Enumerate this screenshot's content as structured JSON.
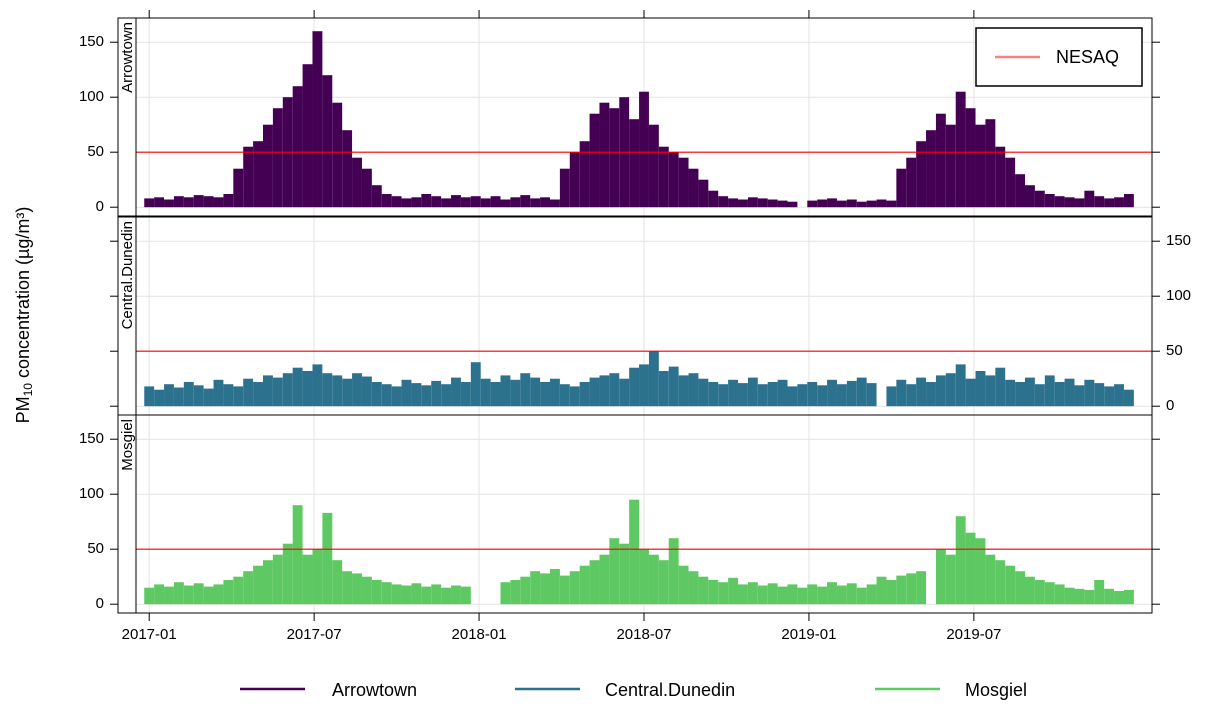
{
  "chart_data": {
    "type": "bar",
    "ylabel_parts": [
      "PM",
      "10",
      " concentration (µg/m³)"
    ],
    "x": [
      2017,
      2017.03,
      2017.06,
      2017.09,
      2017.12,
      2017.15,
      2017.18,
      2017.21,
      2017.24,
      2017.27,
      2017.3,
      2017.33,
      2017.36,
      2017.39,
      2017.42,
      2017.45,
      2017.48,
      2017.51,
      2017.54,
      2017.57,
      2017.6,
      2017.63,
      2017.66,
      2017.69,
      2017.72,
      2017.75,
      2017.78,
      2017.81,
      2017.84,
      2017.87,
      2017.9,
      2017.93,
      2017.96,
      2017.99,
      2018.02,
      2018.05,
      2018.08,
      2018.11,
      2018.14,
      2018.17,
      2018.2,
      2018.23,
      2018.26,
      2018.29,
      2018.32,
      2018.35,
      2018.38,
      2018.41,
      2018.44,
      2018.47,
      2018.5,
      2018.53,
      2018.56,
      2018.59,
      2018.62,
      2018.65,
      2018.68,
      2018.71,
      2018.74,
      2018.77,
      2018.8,
      2018.83,
      2018.86,
      2018.89,
      2018.92,
      2018.95,
      2018.98,
      2019.01,
      2019.04,
      2019.07,
      2019.1,
      2019.13,
      2019.16,
      2019.19,
      2019.22,
      2019.25,
      2019.28,
      2019.31,
      2019.34,
      2019.37,
      2019.4,
      2019.43,
      2019.46,
      2019.49,
      2019.52,
      2019.55,
      2019.58,
      2019.61,
      2019.64,
      2019.67,
      2019.7,
      2019.73,
      2019.76,
      2019.79,
      2019.82,
      2019.85,
      2019.88,
      2019.91,
      2019.94,
      2019.97
    ],
    "xlim": [
      2016.96,
      2020.04
    ],
    "xticks": [
      {
        "value": 2017,
        "label": "2017-01"
      },
      {
        "value": 2017.5,
        "label": "2017-07"
      },
      {
        "value": 2018,
        "label": "2018-01"
      },
      {
        "value": 2018.5,
        "label": "2018-07"
      },
      {
        "value": 2019,
        "label": "2019-01"
      },
      {
        "value": 2019.5,
        "label": "2019-07"
      }
    ],
    "ylim": [
      -8,
      172
    ],
    "yticks": [
      0,
      50,
      100,
      150
    ],
    "grid": true,
    "reference": {
      "name": "NESAQ",
      "value": 50,
      "color": "#ff0000"
    },
    "series": [
      {
        "name": "Arrowtown",
        "color": "#440154",
        "values": [
          8,
          9,
          7,
          10,
          9,
          11,
          10,
          9,
          12,
          35,
          55,
          60,
          75,
          90,
          100,
          110,
          130,
          160,
          120,
          95,
          70,
          45,
          35,
          20,
          12,
          10,
          8,
          9,
          12,
          10,
          8,
          11,
          9,
          10,
          8,
          10,
          7,
          9,
          11,
          8,
          9,
          7,
          35,
          50,
          60,
          85,
          95,
          90,
          100,
          80,
          105,
          75,
          55,
          50,
          45,
          35,
          25,
          15,
          10,
          8,
          7,
          9,
          8,
          7,
          6,
          5,
          null,
          6,
          7,
          8,
          6,
          7,
          5,
          6,
          7,
          6,
          35,
          45,
          60,
          70,
          85,
          75,
          105,
          90,
          75,
          80,
          55,
          45,
          30,
          20,
          15,
          12,
          10,
          9,
          8,
          15,
          10,
          8,
          9,
          12
        ]
      },
      {
        "name": "Central.Dunedin",
        "color": "#2c728e",
        "values": [
          18,
          15,
          20,
          17,
          22,
          19,
          16,
          24,
          20,
          18,
          25,
          22,
          28,
          26,
          30,
          35,
          32,
          38,
          30,
          28,
          25,
          30,
          27,
          22,
          20,
          18,
          24,
          21,
          19,
          23,
          20,
          26,
          22,
          40,
          25,
          22,
          28,
          24,
          30,
          26,
          22,
          25,
          20,
          18,
          22,
          26,
          28,
          30,
          25,
          35,
          38,
          50,
          32,
          36,
          28,
          30,
          25,
          22,
          20,
          24,
          21,
          26,
          20,
          22,
          24,
          18,
          20,
          22,
          19,
          24,
          20,
          23,
          26,
          21,
          null,
          18,
          24,
          20,
          26,
          22,
          28,
          30,
          38,
          25,
          32,
          28,
          35,
          24,
          22,
          26,
          20,
          28,
          22,
          25,
          19,
          24,
          21,
          18,
          20,
          15
        ]
      },
      {
        "name": "Mosgiel",
        "color": "#5ec962",
        "values": [
          15,
          18,
          16,
          20,
          17,
          19,
          16,
          18,
          22,
          25,
          30,
          35,
          40,
          45,
          55,
          90,
          45,
          50,
          83,
          40,
          30,
          28,
          25,
          22,
          20,
          18,
          17,
          19,
          16,
          18,
          15,
          17,
          16,
          null,
          null,
          null,
          20,
          22,
          25,
          30,
          28,
          32,
          26,
          30,
          35,
          40,
          45,
          60,
          55,
          95,
          50,
          45,
          40,
          60,
          35,
          30,
          25,
          22,
          20,
          24,
          18,
          20,
          17,
          19,
          16,
          18,
          15,
          18,
          16,
          20,
          17,
          19,
          15,
          18,
          25,
          22,
          26,
          28,
          30,
          null,
          50,
          45,
          80,
          65,
          60,
          45,
          40,
          35,
          30,
          25,
          22,
          20,
          18,
          15,
          14,
          13,
          22,
          14,
          12,
          13
        ]
      }
    ]
  }
}
